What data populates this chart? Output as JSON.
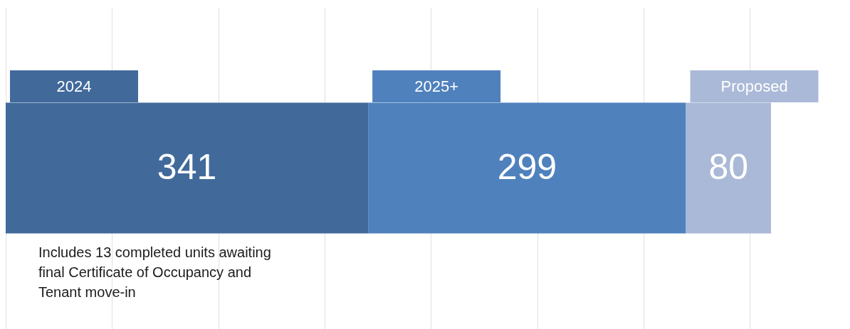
{
  "chart_data": {
    "type": "bar",
    "orientation": "horizontal",
    "stacked": true,
    "categories": [
      null
    ],
    "series": [
      {
        "name": "2024",
        "color": "#416a9b",
        "values": [
          341
        ]
      },
      {
        "name": "2025+",
        "color": "#4f81bd",
        "values": [
          299
        ]
      },
      {
        "name": "Proposed",
        "color": "#aab9d7",
        "values": [
          80
        ]
      }
    ],
    "xticks": [
      0,
      100,
      200,
      300,
      400,
      500,
      600,
      700
    ],
    "grid": "x",
    "legend": "top",
    "tick_labels": false,
    "data_labels": true,
    "annotations": [
      "Includes 13 completed units awaiting final Certificate of Occupancy and Tenant move-in"
    ]
  }
}
